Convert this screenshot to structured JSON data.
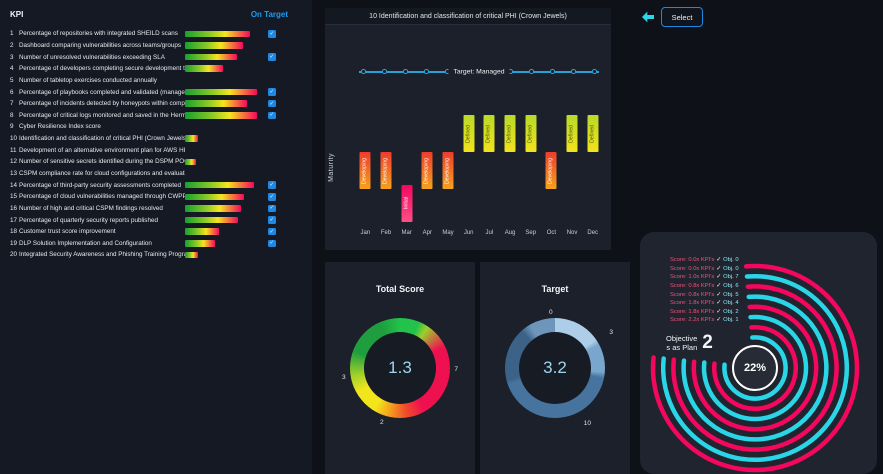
{
  "toolbar": {
    "select_label": "Select"
  },
  "colors": {
    "accent_blue": "#1e88e5",
    "on_target_blue": "#1e9bf0",
    "cyan": "#2a9fd8",
    "pink": "#f5075e",
    "ring_cyan": "#2ad5e8",
    "bar_green": "#15a02f",
    "bar_red": "#f5075e"
  },
  "kpi_panel": {
    "header": {
      "kpi": "KPI",
      "on_target": "On Target"
    },
    "rows": [
      {
        "num": "1",
        "label": "Percentage of repositories with integrated SHEILD scans",
        "bar": 88,
        "on_target": true
      },
      {
        "num": "2",
        "label": "Dashboard comparing vulnerabilities across teams/groups",
        "bar": 78,
        "on_target": false
      },
      {
        "num": "3",
        "label": "Number of unresolved vulnerabilities exceeding SLA",
        "bar": 70,
        "on_target": true
      },
      {
        "num": "4",
        "label": "Percentage of developers completing secure development training",
        "bar": 52,
        "on_target": false
      },
      {
        "num": "5",
        "label": "Number of tabletop exercises conducted annually",
        "bar": 0,
        "on_target": false
      },
      {
        "num": "6",
        "label": "Percentage of playbooks completed and validated (management review)",
        "bar": 97,
        "on_target": true
      },
      {
        "num": "7",
        "label": "Percentage of incidents detected by honeypots within company assets",
        "bar": 84,
        "on_target": true
      },
      {
        "num": "8",
        "label": "Percentage of critical logs monitored and saved in the HermessShield",
        "bar": 97,
        "on_target": true
      },
      {
        "num": "9",
        "label": "Cyber Resilience Index score",
        "bar": 0,
        "on_target": false
      },
      {
        "num": "10",
        "label": "Identification and classification of critical PHI (Crown Jewels)",
        "bar": 18,
        "on_target": false
      },
      {
        "num": "11",
        "label": "Development of an alternative environment plan for AWS HIPAA",
        "bar": 0,
        "on_target": false
      },
      {
        "num": "12",
        "label": "Number of sensitive secrets identified during the DSPM POC and after",
        "bar": 15,
        "on_target": false
      },
      {
        "num": "13",
        "label": "CSPM compliance rate for cloud configurations and evaluation of",
        "bar": 0,
        "on_target": false
      },
      {
        "num": "14",
        "label": "Percentage of third-party security assessments completed",
        "bar": 93,
        "on_target": true
      },
      {
        "num": "15",
        "label": "Percentage of cloud vulnerabilities managed through CWPP integration",
        "bar": 80,
        "on_target": true
      },
      {
        "num": "16",
        "label": "Number of high and critical CSPM findings resolved",
        "bar": 76,
        "on_target": true
      },
      {
        "num": "17",
        "label": "Percentage of quarterly security reports published",
        "bar": 72,
        "on_target": true
      },
      {
        "num": "18",
        "label": "Customer trust score improvement",
        "bar": 46,
        "on_target": true
      },
      {
        "num": "19",
        "label": "DLP Solution Implementation and Configuration",
        "bar": 40,
        "on_target": true
      },
      {
        "num": "20",
        "label": "Integrated Security Awareness and Phishing Training Program",
        "bar": 17,
        "on_target": false
      }
    ]
  },
  "maturity_chart": {
    "title": "10  Identification and classification of critical PHI (Crown Jewels)",
    "target_label": "Target: Managed",
    "ylabel": "Maturity",
    "months": [
      {
        "label": "Jan",
        "level": "Developing"
      },
      {
        "label": "Feb",
        "level": "Developing"
      },
      {
        "label": "Mar",
        "level": "Initial"
      },
      {
        "label": "Apr",
        "level": "Developing"
      },
      {
        "label": "May",
        "level": "Developing"
      },
      {
        "label": "Jun",
        "level": "Defined"
      },
      {
        "label": "Jul",
        "level": "Defined"
      },
      {
        "label": "Aug",
        "level": "Defined"
      },
      {
        "label": "Sep",
        "level": "Defined"
      },
      {
        "label": "Oct",
        "level": "Developing"
      },
      {
        "label": "Nov",
        "level": "Defined"
      },
      {
        "label": "Dec",
        "level": "Defined"
      }
    ]
  },
  "gauges": {
    "total": {
      "title": "Total Score",
      "value": "1.3",
      "ticks": [
        "7",
        "2",
        "3"
      ]
    },
    "target": {
      "title": "Target",
      "value": "3.2",
      "ticks": [
        "0",
        "3",
        "10"
      ]
    }
  },
  "radial_panel": {
    "percent": "22%",
    "objective_line1": "Objective",
    "objective_line2": "s as Plan",
    "objective_value": "2",
    "legend": [
      {
        "score": "Score: 0.0x KPI's",
        "check": "✓",
        "obj": "Obj. 0"
      },
      {
        "score": "Score: 0.0x KPI's",
        "check": "✓",
        "obj": "Obj. 0"
      },
      {
        "score": "Score: 1.0x KPI's",
        "check": "✓",
        "obj": "Obj. 7"
      },
      {
        "score": "Score: 0.8x KPI's",
        "check": "✓",
        "obj": "Obj. 6"
      },
      {
        "score": "Score: 0.8x KPI's",
        "check": "✓",
        "obj": "Obj. 5"
      },
      {
        "score": "Score: 1.8x KPI's",
        "check": "✓",
        "obj": "Obj. 4"
      },
      {
        "score": "Score: 1.8x KPI's",
        "check": "✓",
        "obj": "Obj. 2"
      },
      {
        "score": "Score: 2.2x KPI's",
        "check": "✓",
        "obj": "Obj. 1"
      }
    ],
    "rings": [
      {
        "color": "#f5075e",
        "fraction": 0.78
      },
      {
        "color": "#2ad5e8",
        "fraction": 0.78
      },
      {
        "color": "#f5075e",
        "fraction": 0.78
      },
      {
        "color": "#2ad5e8",
        "fraction": 0.78
      },
      {
        "color": "#f5075e",
        "fraction": 0.78
      },
      {
        "color": "#2ad5e8",
        "fraction": 0.78
      },
      {
        "color": "#f5075e",
        "fraction": 0.78
      },
      {
        "color": "#2ad5e8",
        "fraction": 0.78
      }
    ]
  },
  "chart_data": [
    {
      "type": "bar",
      "title": "10  Identification and classification of critical PHI (Crown Jewels)",
      "categories": [
        "Jan",
        "Feb",
        "Mar",
        "Apr",
        "May",
        "Jun",
        "Jul",
        "Aug",
        "Sep",
        "Oct",
        "Nov",
        "Dec"
      ],
      "values": [
        "Developing",
        "Developing",
        "Initial",
        "Developing",
        "Developing",
        "Defined",
        "Defined",
        "Defined",
        "Defined",
        "Developing",
        "Defined",
        "Defined"
      ],
      "ylabel": "Maturity",
      "annotations": [
        "Target: Managed"
      ],
      "level_order": [
        "Initial",
        "Developing",
        "Defined",
        "Managed"
      ]
    },
    {
      "type": "pie",
      "title": "Total Score",
      "values": [
        1.3
      ],
      "annotations": [
        "1.3",
        "7",
        "2",
        "3"
      ]
    },
    {
      "type": "pie",
      "title": "Target",
      "values": [
        3.2
      ],
      "annotations": [
        "3.2",
        "0",
        "3",
        "10"
      ]
    },
    {
      "type": "pie",
      "title": "Objectives as Plan 2",
      "values": [
        22
      ],
      "annotations": [
        "22%"
      ]
    }
  ]
}
